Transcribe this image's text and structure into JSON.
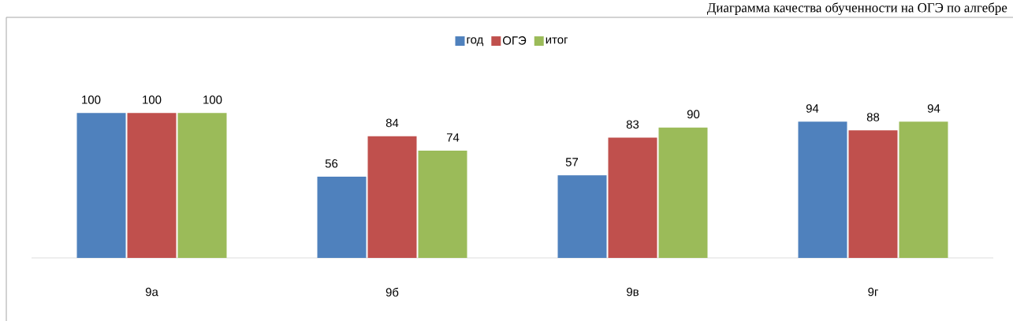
{
  "chart_data": {
    "type": "bar",
    "title": "Диаграмма качества обученности на ОГЭ по алгебре",
    "categories": [
      "9а",
      "9б",
      "9в",
      "9г"
    ],
    "series": [
      {
        "name": "год",
        "color": "#4f81bd",
        "values": [
          100,
          56,
          57,
          94
        ]
      },
      {
        "name": "ОГЭ",
        "color": "#c0504d",
        "values": [
          100,
          84,
          83,
          88
        ]
      },
      {
        "name": "итог",
        "color": "#9bbb59",
        "values": [
          100,
          74,
          90,
          94
        ]
      }
    ],
    "data_labels": true,
    "legend": "top"
  }
}
